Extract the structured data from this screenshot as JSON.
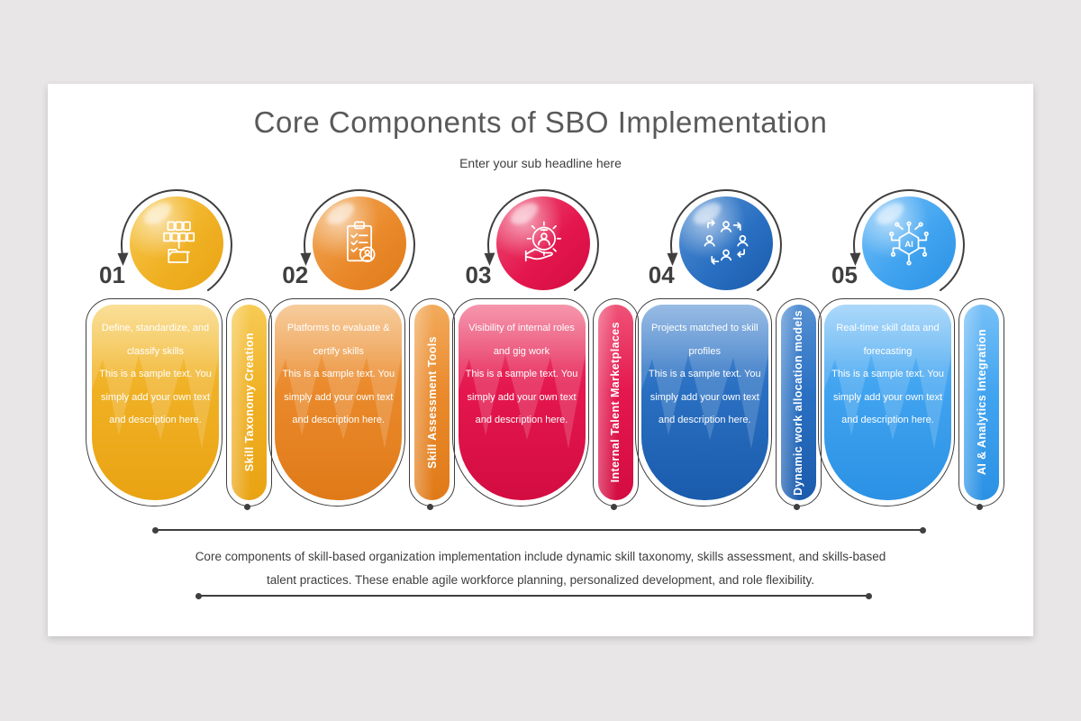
{
  "background_color": "#E8E6E7",
  "slide": {
    "title": "Core Components of SBO Implementation",
    "subtitle": "Enter your sub headline here",
    "footer_text": "Core components of skill-based organization implementation include dynamic skill taxonomy, skills assessment, and skills-based talent practices. These enable agile workforce planning, personalized development, and role flexibility."
  },
  "items": [
    {
      "number": "01",
      "label": "Skill Taxonomy Creation",
      "heading": "Define, standardize, and classify skills",
      "body": "This is a sample text. You simply add your own text and description here.",
      "icon": "folder-taxonomy-icon",
      "color": "#F0B125",
      "color_light": "#F7CB55",
      "color_dark": "#E9A312"
    },
    {
      "number": "02",
      "label": "Skill Assessment Tools",
      "heading": "Platforms to evaluate & certify skills",
      "body": "This is a sample text. You simply add your own text and description here.",
      "icon": "clipboard-checklist-icon",
      "color": "#EA8A2C",
      "color_light": "#F2AB5C",
      "color_dark": "#E07A18"
    },
    {
      "number": "03",
      "label": "Internal Talent Marketplaces",
      "heading": "Visibility of internal roles and gig work",
      "body": "This is a sample text. You simply add your own text and description here.",
      "icon": "gear-person-icon",
      "color": "#E4174E",
      "color_light": "#EF5377",
      "color_dark": "#D30C41"
    },
    {
      "number": "04",
      "label": "Dynamic work allocation models",
      "heading": "Projects matched to skill profiles",
      "body": "This is a sample text. You simply add your own text and description here.",
      "icon": "people-cycle-icon",
      "color": "#2A70C2",
      "color_light": "#5590D3",
      "color_dark": "#1A5BAC"
    },
    {
      "number": "05",
      "label": "AI & Analytics Integration",
      "heading": "Real-time skill data and forecasting",
      "body": "This is a sample text. You simply add your own text and description here.",
      "icon": "ai-circuit-icon",
      "color": "#41A4F0",
      "color_light": "#76C0F7",
      "color_dark": "#2B91E4"
    }
  ]
}
